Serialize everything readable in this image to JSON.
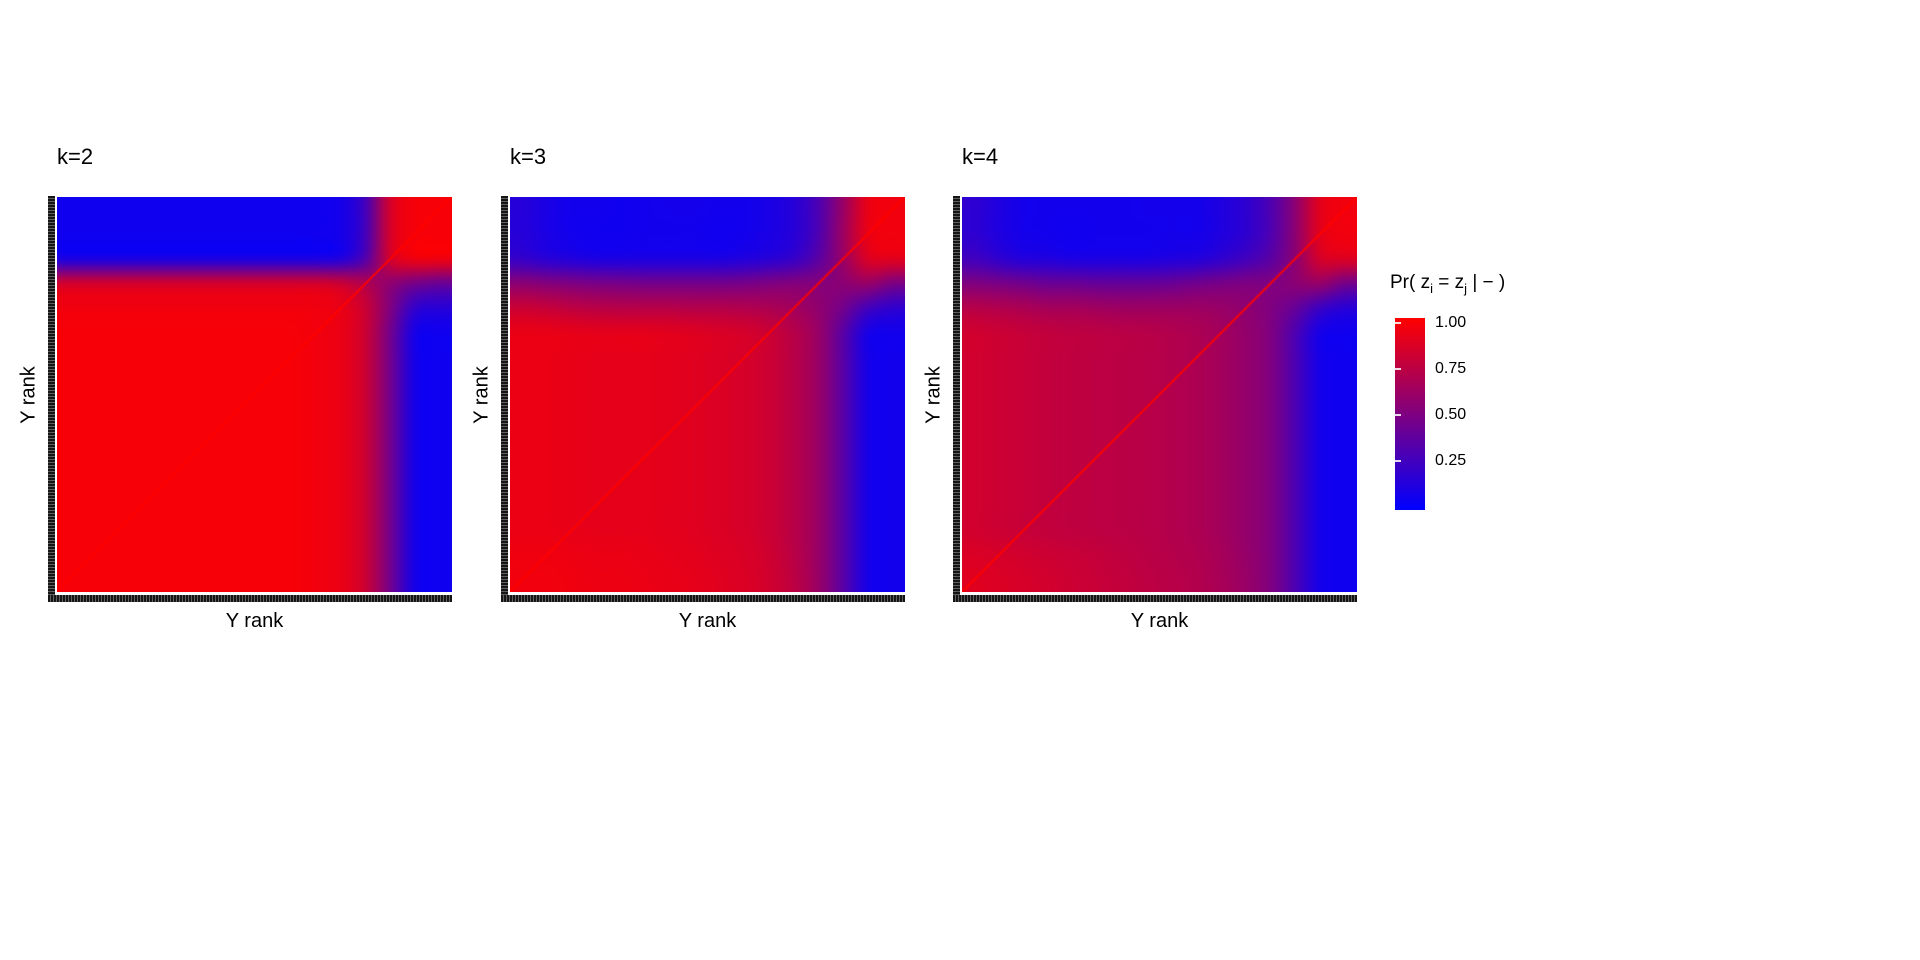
{
  "page": {
    "background": "#ffffff"
  },
  "legend": {
    "title_parts": {
      "prefix": "Pr( z",
      "sub_i": "i",
      "eq": " = z",
      "sub_j": "j",
      "suffix": " | − )"
    },
    "ticks": [
      "1.00",
      "0.75",
      "0.50",
      "0.25"
    ],
    "tick_values": [
      1.0,
      0.75,
      0.5,
      0.25
    ],
    "color_high": "#ff0000",
    "color_low": "#0000ff",
    "position": "right"
  },
  "axes_style": {
    "tick_strip_color": "#151515",
    "tick_description": "dense unlabeled rank tick marks along left and bottom edges"
  },
  "chart_data": [
    {
      "type": "heatmap",
      "title": "k=2",
      "xlabel": "Y rank",
      "ylabel": "Y rank",
      "value_label": "Pr( z_i = z_j | - )",
      "zlim": [
        0,
        1
      ],
      "colormap": "blue (0) to red (1)",
      "orientation": "rows listed top-to-bottom; diagonal of 1.0 runs bottom-left to top-right",
      "diagonal_value": 1.0,
      "grid": [
        [
          0.06,
          0.06,
          0.06,
          0.06,
          0.06,
          0.06,
          0.06,
          0.06,
          0.06,
          0.06,
          0.06,
          0.08,
          0.25,
          0.85,
          0.97,
          0.97
        ],
        [
          0.06,
          0.06,
          0.06,
          0.06,
          0.06,
          0.06,
          0.06,
          0.06,
          0.06,
          0.06,
          0.06,
          0.08,
          0.25,
          0.85,
          0.97,
          0.97
        ],
        [
          0.08,
          0.08,
          0.08,
          0.08,
          0.08,
          0.08,
          0.08,
          0.08,
          0.08,
          0.08,
          0.08,
          0.1,
          0.3,
          0.85,
          0.96,
          0.96
        ],
        [
          0.85,
          0.85,
          0.85,
          0.85,
          0.85,
          0.85,
          0.85,
          0.85,
          0.85,
          0.85,
          0.85,
          0.82,
          0.7,
          0.55,
          0.45,
          0.4
        ],
        [
          0.95,
          0.95,
          0.95,
          0.95,
          0.95,
          0.95,
          0.95,
          0.95,
          0.95,
          0.95,
          0.95,
          0.92,
          0.8,
          0.5,
          0.18,
          0.15
        ],
        [
          0.97,
          0.97,
          0.97,
          0.97,
          0.97,
          0.97,
          0.97,
          0.97,
          0.97,
          0.97,
          0.95,
          0.92,
          0.8,
          0.45,
          0.07,
          0.06
        ],
        [
          0.97,
          0.97,
          0.97,
          0.97,
          0.97,
          0.97,
          0.97,
          0.97,
          0.97,
          0.97,
          0.95,
          0.92,
          0.8,
          0.45,
          0.07,
          0.06
        ],
        [
          0.97,
          0.97,
          0.97,
          0.97,
          0.97,
          0.97,
          0.97,
          0.97,
          0.97,
          0.97,
          0.95,
          0.92,
          0.8,
          0.45,
          0.07,
          0.06
        ],
        [
          0.97,
          0.97,
          0.97,
          0.97,
          0.97,
          0.97,
          0.97,
          0.97,
          0.97,
          0.97,
          0.95,
          0.92,
          0.8,
          0.45,
          0.07,
          0.06
        ],
        [
          0.97,
          0.97,
          0.97,
          0.97,
          0.97,
          0.97,
          0.97,
          0.97,
          0.97,
          0.97,
          0.95,
          0.92,
          0.8,
          0.45,
          0.07,
          0.06
        ],
        [
          0.97,
          0.97,
          0.97,
          0.97,
          0.97,
          0.97,
          0.97,
          0.97,
          0.97,
          0.97,
          0.95,
          0.92,
          0.8,
          0.45,
          0.07,
          0.06
        ],
        [
          0.97,
          0.97,
          0.97,
          0.97,
          0.97,
          0.97,
          0.97,
          0.97,
          0.97,
          0.97,
          0.95,
          0.92,
          0.8,
          0.45,
          0.07,
          0.06
        ],
        [
          0.97,
          0.97,
          0.97,
          0.97,
          0.97,
          0.97,
          0.97,
          0.97,
          0.97,
          0.97,
          0.95,
          0.92,
          0.8,
          0.45,
          0.07,
          0.06
        ],
        [
          0.97,
          0.97,
          0.97,
          0.97,
          0.97,
          0.97,
          0.97,
          0.97,
          0.97,
          0.97,
          0.95,
          0.92,
          0.8,
          0.45,
          0.07,
          0.06
        ],
        [
          0.97,
          0.97,
          0.97,
          0.97,
          0.97,
          0.97,
          0.97,
          0.97,
          0.97,
          0.97,
          0.95,
          0.92,
          0.8,
          0.45,
          0.07,
          0.06
        ],
        [
          0.97,
          0.97,
          0.97,
          0.97,
          0.97,
          0.97,
          0.97,
          0.97,
          0.97,
          0.97,
          0.95,
          0.92,
          0.8,
          0.45,
          0.07,
          0.06
        ]
      ]
    },
    {
      "type": "heatmap",
      "title": "k=3",
      "xlabel": "Y rank",
      "ylabel": "Y rank",
      "value_label": "Pr( z_i = z_j | - )",
      "zlim": [
        0,
        1
      ],
      "colormap": "blue (0) to red (1)",
      "orientation": "rows listed top-to-bottom; diagonal of 1.0 runs bottom-left to top-right",
      "diagonal_value": 1.0,
      "grid": [
        [
          0.15,
          0.1,
          0.07,
          0.07,
          0.06,
          0.07,
          0.08,
          0.08,
          0.07,
          0.07,
          0.1,
          0.15,
          0.3,
          0.6,
          0.93,
          0.95
        ],
        [
          0.15,
          0.1,
          0.07,
          0.06,
          0.06,
          0.07,
          0.07,
          0.07,
          0.06,
          0.07,
          0.1,
          0.15,
          0.3,
          0.62,
          0.93,
          0.95
        ],
        [
          0.2,
          0.15,
          0.12,
          0.1,
          0.1,
          0.1,
          0.1,
          0.1,
          0.1,
          0.12,
          0.15,
          0.2,
          0.35,
          0.6,
          0.88,
          0.9
        ],
        [
          0.55,
          0.52,
          0.5,
          0.48,
          0.47,
          0.46,
          0.46,
          0.46,
          0.46,
          0.47,
          0.5,
          0.52,
          0.52,
          0.55,
          0.6,
          0.48
        ],
        [
          0.8,
          0.78,
          0.75,
          0.73,
          0.72,
          0.72,
          0.72,
          0.71,
          0.71,
          0.7,
          0.68,
          0.64,
          0.57,
          0.45,
          0.25,
          0.18
        ],
        [
          0.92,
          0.92,
          0.91,
          0.9,
          0.9,
          0.9,
          0.89,
          0.88,
          0.86,
          0.84,
          0.8,
          0.72,
          0.6,
          0.35,
          0.08,
          0.07
        ],
        [
          0.92,
          0.92,
          0.91,
          0.9,
          0.9,
          0.9,
          0.89,
          0.88,
          0.86,
          0.84,
          0.8,
          0.72,
          0.6,
          0.35,
          0.08,
          0.07
        ],
        [
          0.92,
          0.92,
          0.91,
          0.9,
          0.9,
          0.9,
          0.89,
          0.88,
          0.86,
          0.84,
          0.8,
          0.72,
          0.6,
          0.35,
          0.08,
          0.07
        ],
        [
          0.92,
          0.92,
          0.91,
          0.9,
          0.9,
          0.9,
          0.89,
          0.88,
          0.86,
          0.84,
          0.8,
          0.72,
          0.6,
          0.35,
          0.08,
          0.07
        ],
        [
          0.92,
          0.92,
          0.91,
          0.9,
          0.9,
          0.9,
          0.89,
          0.88,
          0.86,
          0.84,
          0.8,
          0.72,
          0.6,
          0.35,
          0.08,
          0.07
        ],
        [
          0.92,
          0.92,
          0.91,
          0.9,
          0.9,
          0.9,
          0.89,
          0.88,
          0.86,
          0.84,
          0.8,
          0.72,
          0.6,
          0.35,
          0.08,
          0.07
        ],
        [
          0.92,
          0.92,
          0.91,
          0.9,
          0.9,
          0.9,
          0.89,
          0.88,
          0.86,
          0.84,
          0.8,
          0.72,
          0.6,
          0.35,
          0.08,
          0.07
        ],
        [
          0.92,
          0.92,
          0.91,
          0.9,
          0.9,
          0.9,
          0.89,
          0.88,
          0.86,
          0.84,
          0.8,
          0.72,
          0.6,
          0.35,
          0.08,
          0.07
        ],
        [
          0.92,
          0.92,
          0.91,
          0.9,
          0.9,
          0.9,
          0.89,
          0.88,
          0.86,
          0.84,
          0.8,
          0.72,
          0.6,
          0.35,
          0.08,
          0.07
        ],
        [
          0.94,
          0.94,
          0.93,
          0.92,
          0.92,
          0.91,
          0.9,
          0.89,
          0.87,
          0.85,
          0.81,
          0.73,
          0.6,
          0.35,
          0.08,
          0.07
        ],
        [
          0.95,
          0.95,
          0.94,
          0.93,
          0.93,
          0.92,
          0.91,
          0.9,
          0.88,
          0.86,
          0.82,
          0.74,
          0.6,
          0.35,
          0.08,
          0.07
        ]
      ]
    },
    {
      "type": "heatmap",
      "title": "k=4",
      "xlabel": "Y rank",
      "ylabel": "Y rank",
      "value_label": "Pr( z_i = z_j | - )",
      "zlim": [
        0,
        1
      ],
      "colormap": "blue (0) to red (1)",
      "orientation": "rows listed top-to-bottom; diagonal of 1.0 runs bottom-left to top-right",
      "diagonal_value": 1.0,
      "grid": [
        [
          0.18,
          0.12,
          0.08,
          0.07,
          0.07,
          0.07,
          0.07,
          0.08,
          0.08,
          0.08,
          0.12,
          0.18,
          0.3,
          0.55,
          0.9,
          0.95
        ],
        [
          0.18,
          0.12,
          0.08,
          0.07,
          0.06,
          0.07,
          0.07,
          0.07,
          0.08,
          0.08,
          0.12,
          0.18,
          0.3,
          0.55,
          0.9,
          0.95
        ],
        [
          0.25,
          0.18,
          0.13,
          0.12,
          0.1,
          0.1,
          0.1,
          0.1,
          0.12,
          0.13,
          0.18,
          0.25,
          0.35,
          0.55,
          0.85,
          0.88
        ],
        [
          0.5,
          0.48,
          0.45,
          0.42,
          0.42,
          0.4,
          0.4,
          0.4,
          0.42,
          0.45,
          0.48,
          0.5,
          0.5,
          0.55,
          0.6,
          0.45
        ],
        [
          0.72,
          0.7,
          0.68,
          0.65,
          0.65,
          0.63,
          0.62,
          0.62,
          0.62,
          0.62,
          0.6,
          0.56,
          0.5,
          0.4,
          0.22,
          0.15
        ],
        [
          0.82,
          0.8,
          0.78,
          0.76,
          0.75,
          0.74,
          0.73,
          0.72,
          0.7,
          0.68,
          0.64,
          0.58,
          0.5,
          0.3,
          0.08,
          0.06
        ],
        [
          0.82,
          0.8,
          0.78,
          0.76,
          0.75,
          0.74,
          0.73,
          0.72,
          0.7,
          0.68,
          0.64,
          0.58,
          0.5,
          0.3,
          0.08,
          0.06
        ],
        [
          0.82,
          0.8,
          0.78,
          0.76,
          0.75,
          0.74,
          0.73,
          0.72,
          0.7,
          0.68,
          0.64,
          0.58,
          0.5,
          0.3,
          0.08,
          0.06
        ],
        [
          0.82,
          0.8,
          0.78,
          0.76,
          0.75,
          0.74,
          0.73,
          0.72,
          0.7,
          0.68,
          0.64,
          0.58,
          0.5,
          0.3,
          0.08,
          0.06
        ],
        [
          0.82,
          0.8,
          0.78,
          0.76,
          0.75,
          0.74,
          0.73,
          0.72,
          0.7,
          0.68,
          0.64,
          0.58,
          0.5,
          0.3,
          0.08,
          0.06
        ],
        [
          0.82,
          0.8,
          0.78,
          0.76,
          0.75,
          0.74,
          0.73,
          0.72,
          0.7,
          0.68,
          0.64,
          0.58,
          0.5,
          0.3,
          0.08,
          0.06
        ],
        [
          0.82,
          0.8,
          0.78,
          0.76,
          0.75,
          0.74,
          0.73,
          0.72,
          0.7,
          0.68,
          0.64,
          0.58,
          0.5,
          0.3,
          0.08,
          0.06
        ],
        [
          0.82,
          0.8,
          0.78,
          0.76,
          0.75,
          0.74,
          0.73,
          0.72,
          0.7,
          0.68,
          0.64,
          0.58,
          0.5,
          0.3,
          0.08,
          0.06
        ],
        [
          0.82,
          0.8,
          0.78,
          0.76,
          0.75,
          0.74,
          0.73,
          0.72,
          0.7,
          0.68,
          0.64,
          0.58,
          0.5,
          0.3,
          0.08,
          0.06
        ],
        [
          0.86,
          0.84,
          0.82,
          0.8,
          0.79,
          0.77,
          0.75,
          0.73,
          0.71,
          0.69,
          0.65,
          0.59,
          0.5,
          0.3,
          0.08,
          0.06
        ],
        [
          0.88,
          0.86,
          0.84,
          0.82,
          0.8,
          0.78,
          0.76,
          0.74,
          0.72,
          0.7,
          0.66,
          0.6,
          0.5,
          0.3,
          0.08,
          0.06
        ]
      ]
    }
  ]
}
